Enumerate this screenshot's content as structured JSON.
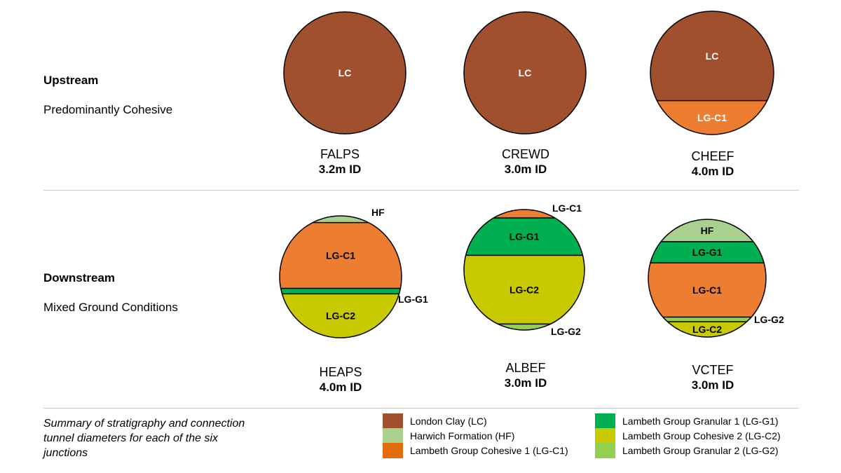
{
  "colors": {
    "LC": "#a0502d",
    "HF": "#a9d08e",
    "LG-C1": "#ed7d31",
    "LG-G1": "#00b050",
    "LG-C2": "#c9c900",
    "LG-G2": "#92d050",
    "legend_LG-C1": "#e26b0a"
  },
  "rows": [
    {
      "title": "Upstream",
      "subtitle": "Predominantly Cohesive"
    },
    {
      "title": "Downstream",
      "subtitle": "Mixed Ground Conditions"
    }
  ],
  "junctions": [
    {
      "name": "FALPS",
      "diameter": "3.2m ID",
      "layers": [
        {
          "code": "LC",
          "label": "LC",
          "from": 0,
          "to": 1
        }
      ]
    },
    {
      "name": "CREWD",
      "diameter": "3.0m ID",
      "layers": [
        {
          "code": "LC",
          "label": "LC",
          "from": 0,
          "to": 1
        }
      ]
    },
    {
      "name": "CHEEF",
      "diameter": "4.0m ID",
      "layers": [
        {
          "code": "LC",
          "label": "LC",
          "from": 0,
          "to": 0.725
        },
        {
          "code": "LG-C1",
          "label": "LG-C1",
          "from": 0.725,
          "to": 1
        }
      ]
    },
    {
      "name": "HEAPS",
      "diameter": "4.0m ID",
      "layers": [
        {
          "code": "HF",
          "label": "HF",
          "from": 0,
          "to": 0.055
        },
        {
          "code": "LG-C1",
          "label": "LG-C1",
          "from": 0.055,
          "to": 0.595
        },
        {
          "code": "LG-G1",
          "label": "LG-G1",
          "from": 0.595,
          "to": 0.64
        },
        {
          "code": "LG-C2",
          "label": "LG-C2",
          "from": 0.64,
          "to": 1
        }
      ]
    },
    {
      "name": "ALBEF",
      "diameter": "3.0m ID",
      "layers": [
        {
          "code": "LG-C1",
          "label": "LG-C1",
          "from": 0,
          "to": 0.07
        },
        {
          "code": "LG-G1",
          "label": "LG-G1",
          "from": 0.07,
          "to": 0.38
        },
        {
          "code": "LG-C2",
          "label": "LG-C2",
          "from": 0.38,
          "to": 0.95
        },
        {
          "code": "LG-G2",
          "label": "LG-G2",
          "from": 0.95,
          "to": 1
        }
      ]
    },
    {
      "name": "VCTEF",
      "diameter": "3.0m ID",
      "layers": [
        {
          "code": "HF",
          "label": "HF",
          "from": 0,
          "to": 0.19
        },
        {
          "code": "LG-G1",
          "label": "LG-G1",
          "from": 0.19,
          "to": 0.37
        },
        {
          "code": "LG-C1",
          "label": "LG-C1",
          "from": 0.37,
          "to": 0.83
        },
        {
          "code": "LG-G2",
          "label": "LG-G2",
          "from": 0.83,
          "to": 0.87
        },
        {
          "code": "LG-C2",
          "label": "LG-C2",
          "from": 0.87,
          "to": 1
        }
      ]
    }
  ],
  "caption": "Summary of stratigraphy and connection tunnel diameters for each of the six junctions",
  "legend": [
    {
      "code": "LC",
      "label": "London Clay (LC)"
    },
    {
      "code": "HF",
      "label": "Harwich Formation (HF)"
    },
    {
      "code": "legend_LG-C1",
      "label": "Lambeth Group Cohesive 1 (LG-C1)"
    },
    {
      "code": "LG-G1",
      "label": "Lambeth Group Granular 1 (LG-G1)"
    },
    {
      "code": "LG-C2",
      "label": "Lambeth Group Cohesive 2 (LG-C2)"
    },
    {
      "code": "LG-G2",
      "label": "Lambeth Group Granular 2 (LG-G2)"
    }
  ]
}
